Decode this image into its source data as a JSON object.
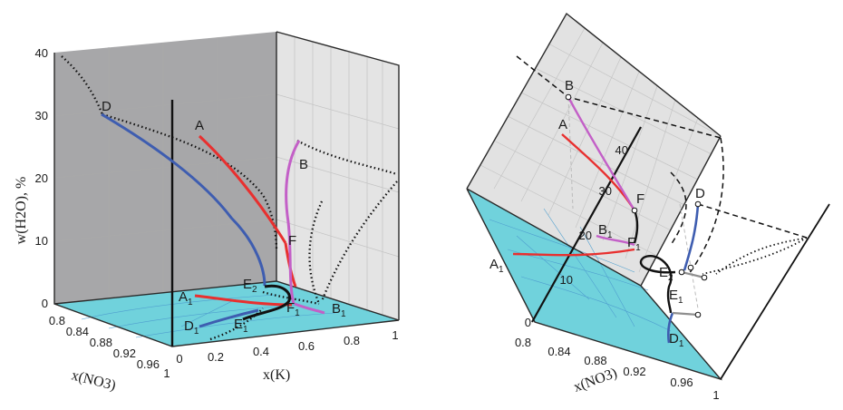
{
  "left_diagram": {
    "y_axis_title": "w(H2O), %",
    "y_ticks": [
      "40",
      "30",
      "20",
      "10",
      "0"
    ],
    "nitrate_axis_title": "x(NO3)",
    "nitrate_ticks": [
      "0.8",
      "0.84",
      "0.88",
      "0.92",
      "0.96",
      "1"
    ],
    "k_axis_title": "x(K)",
    "k_ticks": [
      "0",
      "0.2",
      "0.4",
      "0.6",
      "0.8",
      "1"
    ],
    "points": {
      "D": "D",
      "A": "A",
      "B": "B",
      "F": "F",
      "E2": "E",
      "E2_sub": "2",
      "A1": "A",
      "A1_sub": "1",
      "D1": "D",
      "D1_sub": "1",
      "E1": "E",
      "E1_sub": "1",
      "F1": "F",
      "F1_sub": "1",
      "B1": "B",
      "B1_sub": "1"
    }
  },
  "right_diagram": {
    "y_ticks": [
      "40",
      "30",
      "20",
      "10",
      "0"
    ],
    "nitrate_axis_title": "x(NO3)",
    "nitrate_ticks": [
      "0.8",
      "0.84",
      "0.88",
      "0.92",
      "0.96",
      "1"
    ],
    "points": {
      "B": "B",
      "A": "A",
      "F": "F",
      "D": "D",
      "B1": "B",
      "B1_sub": "1",
      "F1": "F",
      "F1_sub": "1",
      "A1": "A",
      "A1_sub": "1",
      "E2": "E",
      "E2_sub": "2",
      "E1": "E",
      "E1_sub": "1",
      "D1": "D",
      "D1_sub": "1"
    }
  },
  "colors": {
    "base_plane": "#70d2dc",
    "back_wall": "#a7a7a9",
    "side_wall": "#e2e2e2",
    "red_curve": "#e8302f",
    "blue_curve": "#3e5db0",
    "violet_curve": "#c35fc7",
    "black_curve": "#111111"
  }
}
